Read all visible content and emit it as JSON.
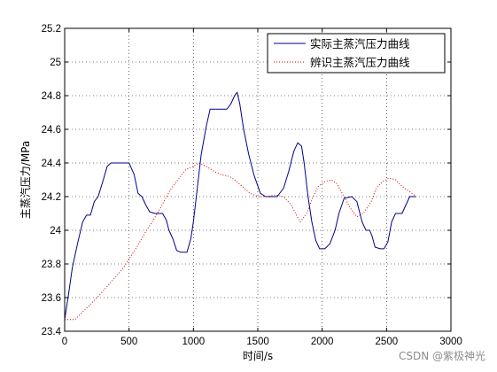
{
  "chart_data": {
    "type": "line",
    "title": "",
    "xlabel": "时间/s",
    "ylabel": "主蒸汽压力/MPa",
    "xlim": [
      0,
      3000
    ],
    "ylim": [
      23.4,
      25.2
    ],
    "x_ticks": [
      "0",
      "500",
      "1000",
      "1500",
      "2000",
      "2500",
      "3000"
    ],
    "y_ticks": [
      "23.4",
      "23.6",
      "23.8",
      "24",
      "24.2",
      "24.4",
      "24.6",
      "24.8",
      "25",
      "25.2"
    ],
    "grid": true,
    "legend_position": "top-right",
    "series": [
      {
        "name": "实际主蒸汽压力曲线",
        "color": "#00008b",
        "style": "solid",
        "points": [
          [
            0,
            23.47
          ],
          [
            30,
            23.62
          ],
          [
            60,
            23.78
          ],
          [
            100,
            23.92
          ],
          [
            140,
            24.05
          ],
          [
            170,
            24.09
          ],
          [
            200,
            24.09
          ],
          [
            230,
            24.17
          ],
          [
            260,
            24.2
          ],
          [
            300,
            24.3
          ],
          [
            330,
            24.38
          ],
          [
            360,
            24.4
          ],
          [
            400,
            24.4
          ],
          [
            450,
            24.4
          ],
          [
            500,
            24.4
          ],
          [
            540,
            24.33
          ],
          [
            570,
            24.22
          ],
          [
            600,
            24.2
          ],
          [
            630,
            24.15
          ],
          [
            660,
            24.11
          ],
          [
            700,
            24.1
          ],
          [
            760,
            24.1
          ],
          [
            790,
            24.06
          ],
          [
            810,
            24.0
          ],
          [
            840,
            23.95
          ],
          [
            870,
            23.88
          ],
          [
            900,
            23.87
          ],
          [
            950,
            23.87
          ],
          [
            980,
            23.95
          ],
          [
            1000,
            24.05
          ],
          [
            1030,
            24.25
          ],
          [
            1060,
            24.45
          ],
          [
            1100,
            24.62
          ],
          [
            1130,
            24.72
          ],
          [
            1200,
            24.72
          ],
          [
            1260,
            24.72
          ],
          [
            1290,
            24.75
          ],
          [
            1320,
            24.8
          ],
          [
            1340,
            24.82
          ],
          [
            1360,
            24.75
          ],
          [
            1390,
            24.6
          ],
          [
            1430,
            24.45
          ],
          [
            1470,
            24.33
          ],
          [
            1520,
            24.22
          ],
          [
            1560,
            24.2
          ],
          [
            1600,
            24.2
          ],
          [
            1650,
            24.2
          ],
          [
            1700,
            24.25
          ],
          [
            1740,
            24.35
          ],
          [
            1780,
            24.47
          ],
          [
            1810,
            24.52
          ],
          [
            1840,
            24.5
          ],
          [
            1860,
            24.4
          ],
          [
            1890,
            24.2
          ],
          [
            1920,
            24.05
          ],
          [
            1950,
            23.94
          ],
          [
            1980,
            23.89
          ],
          [
            2020,
            23.89
          ],
          [
            2060,
            23.92
          ],
          [
            2100,
            24.0
          ],
          [
            2130,
            24.1
          ],
          [
            2170,
            24.19
          ],
          [
            2230,
            24.2
          ],
          [
            2270,
            24.17
          ],
          [
            2310,
            24.05
          ],
          [
            2340,
            24.0
          ],
          [
            2370,
            24.0
          ],
          [
            2390,
            23.96
          ],
          [
            2410,
            23.9
          ],
          [
            2450,
            23.89
          ],
          [
            2480,
            23.89
          ],
          [
            2510,
            23.93
          ],
          [
            2540,
            24.05
          ],
          [
            2570,
            24.1
          ],
          [
            2620,
            24.1
          ],
          [
            2650,
            24.15
          ],
          [
            2680,
            24.2
          ],
          [
            2730,
            24.2
          ]
        ]
      },
      {
        "name": "辨识主蒸汽压力曲线",
        "color": "#cc0000",
        "style": "dotted",
        "points": [
          [
            0,
            23.47
          ],
          [
            80,
            23.47
          ],
          [
            120,
            23.5
          ],
          [
            200,
            23.56
          ],
          [
            300,
            23.64
          ],
          [
            380,
            23.71
          ],
          [
            450,
            23.77
          ],
          [
            500,
            23.83
          ],
          [
            560,
            23.9
          ],
          [
            620,
            23.98
          ],
          [
            680,
            24.05
          ],
          [
            750,
            24.14
          ],
          [
            820,
            24.24
          ],
          [
            880,
            24.3
          ],
          [
            940,
            24.36
          ],
          [
            1000,
            24.38
          ],
          [
            1040,
            24.4
          ],
          [
            1100,
            24.38
          ],
          [
            1160,
            24.35
          ],
          [
            1220,
            24.33
          ],
          [
            1280,
            24.32
          ],
          [
            1320,
            24.3
          ],
          [
            1380,
            24.26
          ],
          [
            1440,
            24.22
          ],
          [
            1500,
            24.2
          ],
          [
            1560,
            24.2
          ],
          [
            1640,
            24.21
          ],
          [
            1700,
            24.2
          ],
          [
            1760,
            24.15
          ],
          [
            1800,
            24.09
          ],
          [
            1830,
            24.05
          ],
          [
            1880,
            24.1
          ],
          [
            1930,
            24.2
          ],
          [
            1970,
            24.26
          ],
          [
            2020,
            24.29
          ],
          [
            2070,
            24.3
          ],
          [
            2110,
            24.28
          ],
          [
            2170,
            24.2
          ],
          [
            2220,
            24.13
          ],
          [
            2270,
            24.08
          ],
          [
            2320,
            24.1
          ],
          [
            2380,
            24.17
          ],
          [
            2420,
            24.25
          ],
          [
            2470,
            24.29
          ],
          [
            2520,
            24.31
          ],
          [
            2570,
            24.3
          ],
          [
            2620,
            24.26
          ],
          [
            2680,
            24.23
          ],
          [
            2730,
            24.2
          ]
        ]
      }
    ]
  },
  "watermark": "CSDN @紫极神光"
}
